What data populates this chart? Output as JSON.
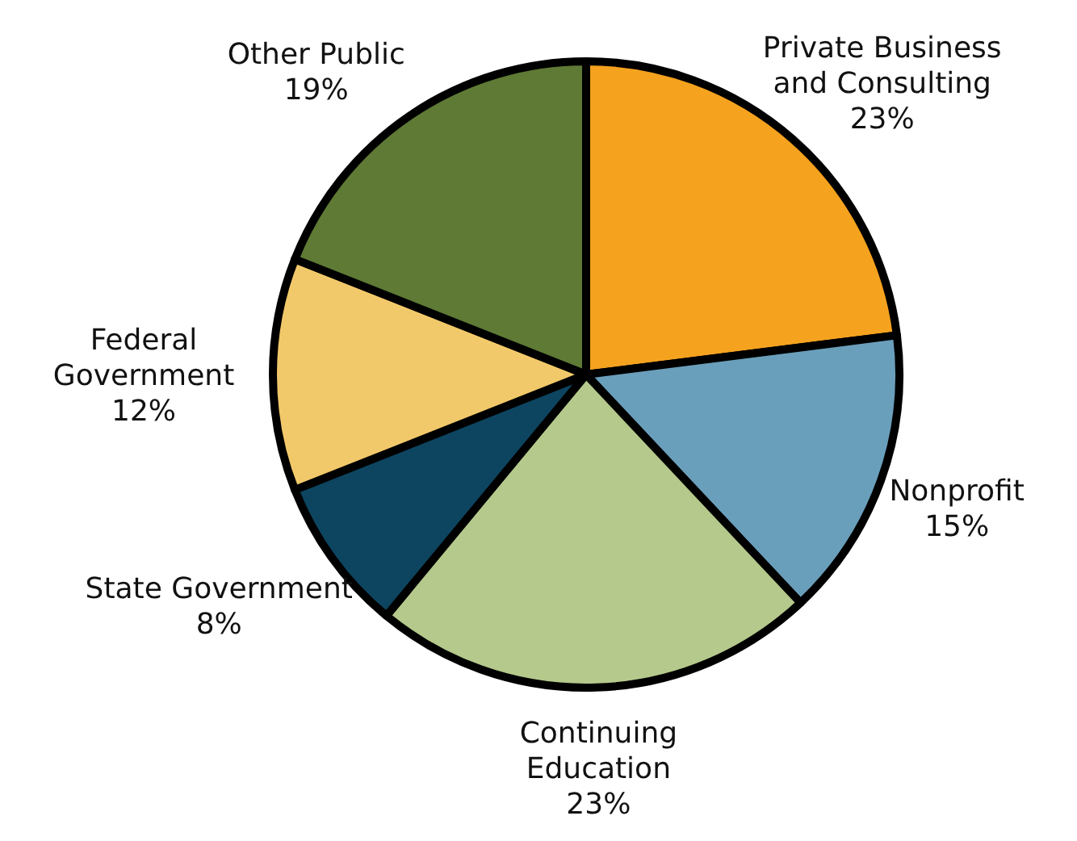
{
  "chart_data": {
    "type": "pie",
    "categories": [
      "Private Business and Consulting",
      "Nonprofit",
      "Continuing Education",
      "State Government",
      "Federal Government",
      "Other Public"
    ],
    "values": [
      23,
      15,
      23,
      8,
      12,
      19
    ],
    "value_labels": [
      "23%",
      "15%",
      "23%",
      "8%",
      "12%",
      "19%"
    ],
    "colors": [
      "#f5a21f",
      "#6a9fbb",
      "#b5c98c",
      "#0d4560",
      "#f2c96a",
      "#5e7a35"
    ]
  }
}
